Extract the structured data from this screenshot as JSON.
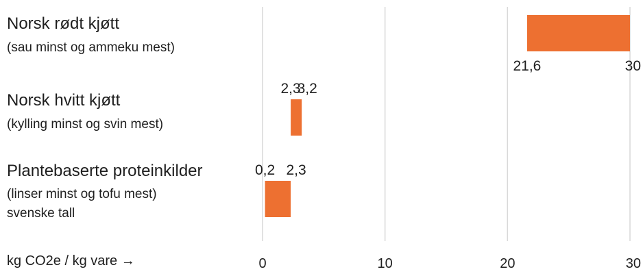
{
  "chart_data": {
    "type": "bar",
    "subtype": "range",
    "xlabel": "kg CO2e / kg vare →",
    "xlim": [
      0,
      30
    ],
    "xticks": [
      0,
      10,
      20,
      30
    ],
    "xtick_labels": [
      "0",
      "10",
      "20",
      "30"
    ],
    "grid": true,
    "bar_color": "#ED7031",
    "categories": [
      {
        "name": "Norsk rødt kjøtt",
        "sublines": [
          "(sau minst og ammeku mest)"
        ],
        "low": 21.6,
        "high": 30,
        "low_label": "21,6",
        "high_label": "30",
        "label_position": "below"
      },
      {
        "name": "Norsk hvitt kjøtt",
        "sublines": [
          "(kylling minst og svin mest)"
        ],
        "low": 2.3,
        "high": 3.2,
        "low_label": "2,3",
        "high_label": "3,2",
        "label_position": "above"
      },
      {
        "name": "Plantebaserte proteinkilder",
        "sublines": [
          "(linser minst og tofu mest)",
          "svenske tall"
        ],
        "low": 0.2,
        "high": 2.3,
        "low_label": "0,2",
        "high_label": "2,3",
        "label_position": "above"
      }
    ]
  }
}
